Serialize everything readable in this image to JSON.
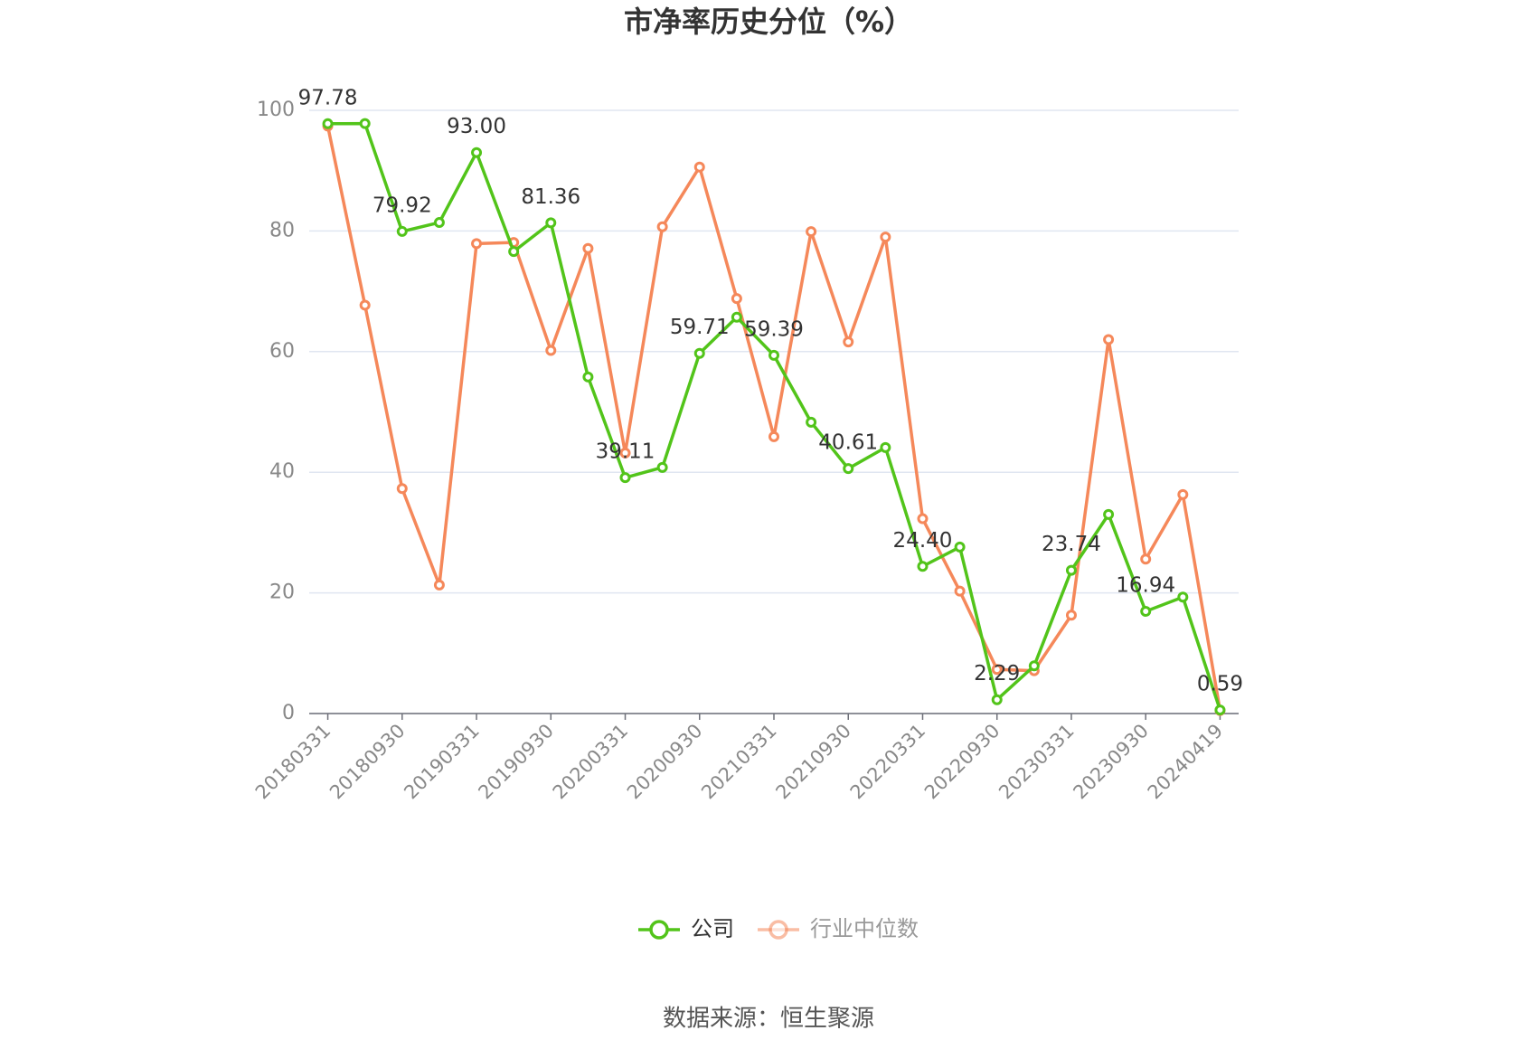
{
  "chart_data": {
    "type": "line",
    "title": "市净率历史分位（%）",
    "categories": [
      "20180331",
      null,
      "20180930",
      null,
      "20190331",
      null,
      "20190930",
      null,
      "20200331",
      null,
      "20200930",
      null,
      "20210331",
      null,
      "20210930",
      null,
      "20220331",
      null,
      "20220930",
      null,
      "20230331",
      null,
      "20230930",
      null,
      "20240419"
    ],
    "series": [
      {
        "name": "公司",
        "color": "#52c41a",
        "values": [
          97.78,
          97.8,
          79.92,
          81.4,
          93.0,
          76.6,
          81.36,
          55.8,
          39.11,
          40.8,
          59.71,
          65.7,
          59.39,
          48.3,
          40.61,
          44.1,
          24.4,
          27.6,
          2.29,
          7.9,
          23.74,
          33.0,
          16.94,
          19.3,
          0.59
        ],
        "value_labels": [
          "97.78",
          null,
          "79.92",
          null,
          "93.00",
          null,
          "81.36",
          null,
          "39.11",
          null,
          "59.71",
          null,
          "59.39",
          null,
          "40.61",
          null,
          "24.40",
          null,
          "2.29",
          null,
          "23.74",
          null,
          "16.94",
          null,
          "0.59"
        ]
      },
      {
        "name": "行业中位数",
        "color": "#f5885a",
        "values": [
          97.4,
          67.7,
          37.3,
          21.3,
          77.9,
          78.1,
          60.2,
          77.1,
          43.2,
          80.7,
          90.6,
          68.8,
          45.9,
          79.9,
          61.6,
          79.0,
          32.3,
          20.3,
          7.3,
          7.1,
          16.3,
          62.0,
          25.6,
          36.3,
          0.5
        ]
      }
    ],
    "ylim": [
      0,
      100
    ],
    "yticks": [
      0,
      20,
      40,
      60,
      80,
      100
    ],
    "grid": true,
    "legend": "bottom",
    "source": "数据来源：恒生聚源"
  }
}
